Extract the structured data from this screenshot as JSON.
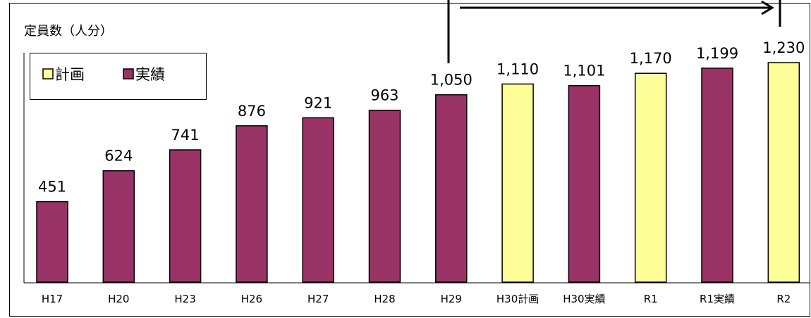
{
  "chart_data": {
    "type": "bar",
    "title": "定員数（人分）",
    "categories": [
      "H17",
      "H20",
      "H23",
      "H26",
      "H27",
      "H28",
      "H29",
      "H30計画",
      "H30実績",
      "R1",
      "R1実績",
      "R2"
    ],
    "values": [
      451,
      624,
      741,
      876,
      921,
      963,
      1050,
      1110,
      1101,
      1170,
      1199,
      1230
    ],
    "value_labels": [
      "451",
      "624",
      "741",
      "876",
      "921",
      "963",
      "1,050",
      "1,110",
      "1,101",
      "1,170",
      "1,199",
      "1,230"
    ],
    "bar_series": [
      "実績",
      "実績",
      "実績",
      "実績",
      "実績",
      "実績",
      "実績",
      "計画",
      "実績",
      "計画",
      "実績",
      "計画"
    ],
    "series": [
      {
        "name": "計画",
        "color": "#FFFF99"
      },
      {
        "name": "実績",
        "color": "#993366"
      }
    ],
    "legend": {
      "placement": "top-left",
      "items": [
        "計画",
        "実績"
      ]
    },
    "annotation": {
      "type": "arrow",
      "from_category": "H29",
      "to_category": "R2"
    },
    "ylim": [
      0,
      1400
    ],
    "grid": false,
    "xlabel": "",
    "ylabel": ""
  }
}
